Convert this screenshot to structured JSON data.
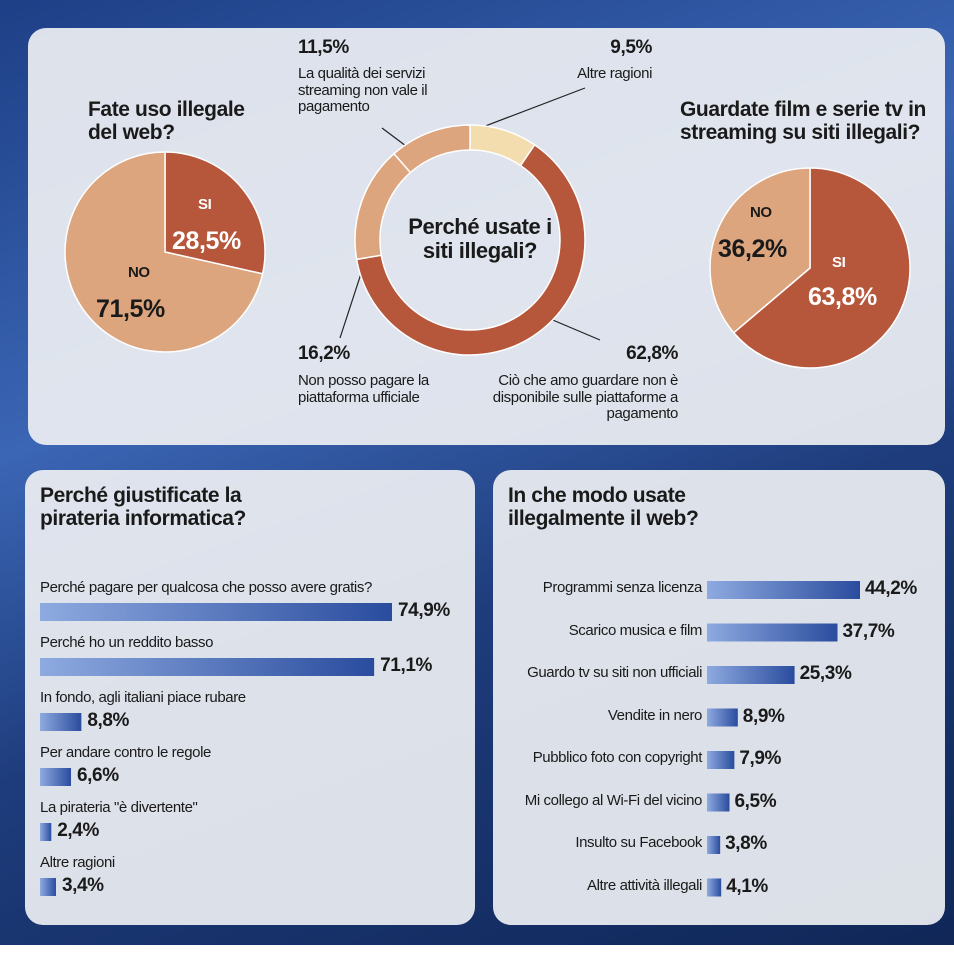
{
  "chart_data": [
    {
      "type": "pie",
      "title": "Fate uso illegale del web?",
      "categories": [
        "SI",
        "NO"
      ],
      "values": [
        28.5,
        71.5
      ],
      "value_labels": [
        "28,5%",
        "71,5%"
      ],
      "colors": [
        "#b6563a",
        "#dca57e"
      ]
    },
    {
      "type": "donut",
      "title": "Perché usate i siti illegali?",
      "categories": [
        "Altre ragioni",
        "Ciò che amo guardare non è disponibile sulle piattaforme a pagamento",
        "Non posso pagare la piattaforma ufficiale",
        "La qualità dei servizi streaming non vale il pagamento"
      ],
      "values": [
        9.5,
        62.8,
        16.2,
        11.5
      ],
      "value_labels": [
        "9,5%",
        "62,8%",
        "16,2%",
        "11,5%"
      ],
      "colors": [
        "#f3dcae",
        "#b6563a",
        "#dca57e",
        "#dca57e"
      ]
    },
    {
      "type": "pie",
      "title": "Guardate film e serie tv in streaming su siti illegali?",
      "categories": [
        "SI",
        "NO"
      ],
      "values": [
        63.8,
        36.2
      ],
      "value_labels": [
        "63,8%",
        "36,2%"
      ],
      "colors": [
        "#b6563a",
        "#dca57e"
      ]
    },
    {
      "type": "bar-left",
      "title": "Perché giustificate la pirateria informatica?",
      "categories": [
        "Perché pagare per qualcosa che posso avere gratis?",
        "Perché ho un reddito basso",
        "In fondo, agli italiani piace rubare",
        "Per andare contro le regole",
        "La pirateria \"è divertente\"",
        "Altre ragioni"
      ],
      "values": [
        74.9,
        71.1,
        8.8,
        6.6,
        2.4,
        3.4
      ],
      "value_labels": [
        "74,9%",
        "71,1%",
        "8,8%",
        "6,6%",
        "2,4%",
        "3,4%"
      ]
    },
    {
      "type": "bar-right",
      "title": "In che modo usate illegalmente il web?",
      "categories": [
        "Programmi senza licenza",
        "Scarico musica  e film",
        "Guardo tv su siti non ufficiali",
        "Vendite in nero",
        "Pubblico foto con copyright",
        "Mi collego al Wi-Fi del vicino",
        "Insulto su Facebook",
        "Altre attività illegali"
      ],
      "values": [
        44.2,
        37.7,
        25.3,
        8.9,
        7.9,
        6.5,
        3.8,
        4.1
      ],
      "value_labels": [
        "44,2%",
        "37,7%",
        "25,3%",
        "8,9%",
        "7,9%",
        "6,5%",
        "3,8%",
        "4,1%"
      ]
    }
  ]
}
